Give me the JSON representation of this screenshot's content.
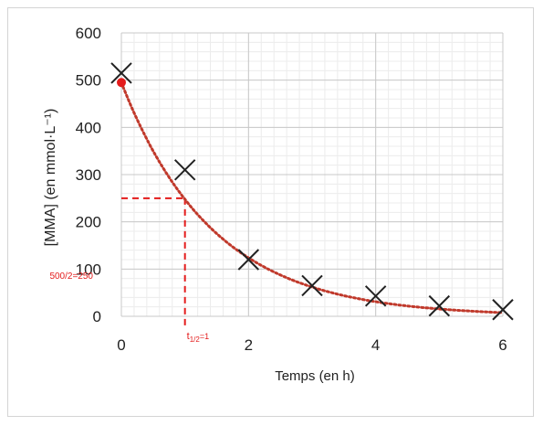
{
  "chart_data": {
    "type": "scatter",
    "title": "",
    "xlabel": "Temps (en h)",
    "ylabel": "[MMA] (en mmol·L⁻¹)",
    "xlim": [
      0,
      6
    ],
    "ylim": [
      0,
      600
    ],
    "x_ticks": [
      "0",
      "2",
      "4",
      "6"
    ],
    "y_ticks": [
      "0",
      "100",
      "200",
      "300",
      "400",
      "500",
      "600"
    ],
    "grid": true,
    "series": [
      {
        "marker": "x",
        "color": "#222222",
        "x": [
          0,
          1,
          2,
          3,
          4,
          5,
          6
        ],
        "y": [
          515,
          310,
          120,
          65,
          43,
          22,
          14
        ]
      }
    ],
    "fit_curve": {
      "style": "dotted",
      "color": "#c0392b",
      "initial_value": 495,
      "half_life": 1
    },
    "fit_start_point": {
      "x": 0,
      "y": 495,
      "color": "#e41b1b"
    },
    "annotations": {
      "color": "#e41b1b",
      "half_life_x": 1,
      "half_value_y": 250,
      "half_value_label": "500/2=250",
      "half_life_label_main": "t",
      "half_life_label_sub": "1/2",
      "half_life_label_tail": "=1"
    }
  }
}
